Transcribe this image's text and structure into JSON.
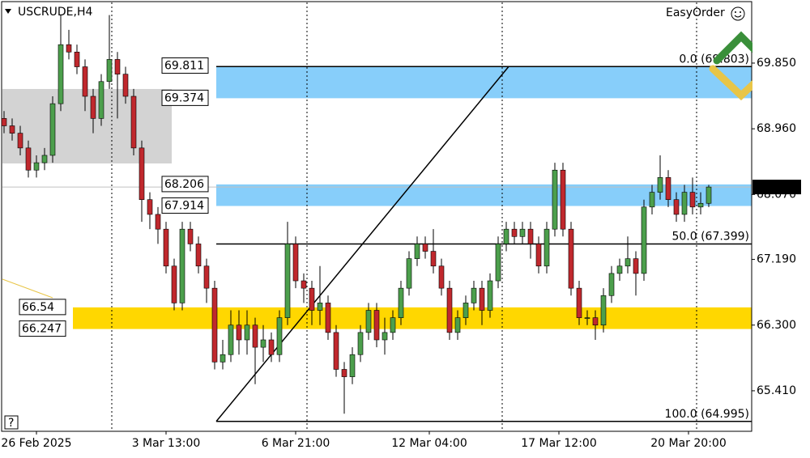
{
  "chart_data": {
    "type": "candlestick",
    "title": "USCRUDE,H4",
    "plugin": "EasyOrder",
    "ylim": [
      64.861,
      70.672
    ],
    "yticks": [
      {
        "value": 69.85,
        "label": "69.850"
      },
      {
        "value": 68.96,
        "label": "68.960"
      },
      {
        "value": 68.07,
        "label": "68.070"
      },
      {
        "value": 67.19,
        "label": "67.190"
      },
      {
        "value": 66.3,
        "label": "66.300"
      },
      {
        "value": 65.41,
        "label": "65.410"
      }
    ],
    "x_labels": [
      "26 Feb 2025",
      "3 Mar 13:00",
      "6 Mar 21:00",
      "12 Mar 04:00",
      "17 Mar 12:00",
      "20 Mar 20:00"
    ],
    "current_price": 68.171,
    "up_color": "#4c9f4c",
    "down_color": "#c0282d",
    "open": [
      69.1,
      69.0,
      68.9,
      68.7,
      68.4,
      68.5,
      68.6,
      69.3,
      70.1,
      70.0,
      69.8,
      69.4,
      69.1,
      69.6,
      69.9,
      69.7,
      69.4,
      68.7,
      68.0,
      67.8,
      67.6,
      67.1,
      66.6,
      67.6,
      67.4,
      67.1,
      66.8,
      65.8,
      65.9,
      66.3,
      66.1,
      66.3,
      66.0,
      66.1,
      65.9,
      66.4,
      67.4,
      66.9,
      66.8,
      66.5,
      66.6,
      66.2,
      65.7,
      65.6,
      65.9,
      66.2,
      66.5,
      66.1,
      66.2,
      66.4,
      66.8,
      67.2,
      67.4,
      67.3,
      67.1,
      66.8,
      66.2,
      66.4,
      66.6,
      66.8,
      66.5,
      66.9,
      67.4,
      67.6,
      67.5,
      67.6,
      67.4,
      67.1,
      67.6,
      68.4,
      67.6,
      66.8,
      66.4,
      66.4,
      66.3,
      66.7,
      67.0,
      67.1,
      67.2,
      67.0,
      67.9,
      68.1,
      68.3,
      68.0,
      67.8,
      68.1,
      67.9,
      67.95
    ],
    "high": [
      69.2,
      69.1,
      69.0,
      68.8,
      68.6,
      68.7,
      69.4,
      70.5,
      70.3,
      70.1,
      69.9,
      69.5,
      69.7,
      70.5,
      70.0,
      69.8,
      69.5,
      68.8,
      68.1,
      67.9,
      67.7,
      67.2,
      67.7,
      67.7,
      67.5,
      67.2,
      66.9,
      66.1,
      66.5,
      66.5,
      66.5,
      66.4,
      66.3,
      66.2,
      66.5,
      67.7,
      67.5,
      67.0,
      66.9,
      67.1,
      66.7,
      66.3,
      65.8,
      66.0,
      66.3,
      66.6,
      66.6,
      66.4,
      66.5,
      66.9,
      67.3,
      67.5,
      67.5,
      67.6,
      67.2,
      66.9,
      66.5,
      66.7,
      66.9,
      66.9,
      67.0,
      67.5,
      67.7,
      67.7,
      67.7,
      67.7,
      67.5,
      67.7,
      68.5,
      68.5,
      67.7,
      66.9,
      66.5,
      66.5,
      66.8,
      67.1,
      67.2,
      67.5,
      67.3,
      68.0,
      68.2,
      68.6,
      68.4,
      68.1,
      68.2,
      68.3,
      68.1,
      68.2
    ],
    "low": [
      68.9,
      68.8,
      68.6,
      68.3,
      68.3,
      68.4,
      68.5,
      69.2,
      69.9,
      69.7,
      69.2,
      68.9,
      69.0,
      69.5,
      69.1,
      69.3,
      68.6,
      67.7,
      67.6,
      67.4,
      67.0,
      66.5,
      66.5,
      67.3,
      67.0,
      66.6,
      65.7,
      65.7,
      65.8,
      65.9,
      65.9,
      65.5,
      65.8,
      65.8,
      65.8,
      66.3,
      66.8,
      66.6,
      66.3,
      66.3,
      66.1,
      65.6,
      65.1,
      65.5,
      65.8,
      66.1,
      66.0,
      65.9,
      66.1,
      66.3,
      66.7,
      67.1,
      67.2,
      67.0,
      66.7,
      66.1,
      66.1,
      66.3,
      66.5,
      66.3,
      66.4,
      66.8,
      67.3,
      67.4,
      67.4,
      67.2,
      67.0,
      67.0,
      67.5,
      67.5,
      66.7,
      66.3,
      66.3,
      66.1,
      66.2,
      66.6,
      66.9,
      67.0,
      66.7,
      66.9,
      67.8,
      68.0,
      67.9,
      67.7,
      67.7,
      67.8,
      67.8,
      67.9
    ],
    "close": [
      69.0,
      68.9,
      68.7,
      68.4,
      68.5,
      68.6,
      69.3,
      70.1,
      70.0,
      69.8,
      69.4,
      69.1,
      69.6,
      69.9,
      69.7,
      69.4,
      68.7,
      68.0,
      67.8,
      67.6,
      67.1,
      66.6,
      67.6,
      67.4,
      67.1,
      66.8,
      65.8,
      65.9,
      66.3,
      66.1,
      66.3,
      66.0,
      66.1,
      65.9,
      66.4,
      67.4,
      66.9,
      66.8,
      66.5,
      66.6,
      66.2,
      65.7,
      65.6,
      65.9,
      66.2,
      66.5,
      66.1,
      66.2,
      66.4,
      66.8,
      67.2,
      67.4,
      67.3,
      67.1,
      66.8,
      66.2,
      66.4,
      66.6,
      66.8,
      66.5,
      66.9,
      67.4,
      67.6,
      67.5,
      67.6,
      67.4,
      67.1,
      67.6,
      68.4,
      67.6,
      66.8,
      66.4,
      66.4,
      66.3,
      66.7,
      67.0,
      67.1,
      67.2,
      67.0,
      67.9,
      68.1,
      68.3,
      68.0,
      67.8,
      68.1,
      67.9,
      67.95,
      68.171
    ],
    "zones": [
      {
        "top": 69.811,
        "bottom": 69.374,
        "color": "#87cefa"
      },
      {
        "top": 68.206,
        "bottom": 67.914,
        "color": "#87cefa"
      },
      {
        "top": 66.54,
        "bottom": 66.247,
        "color": "#ffd700"
      }
    ],
    "range_box": {
      "top": 69.499,
      "bottom": 68.49,
      "color": "#d3d3d3"
    },
    "fibonacci": [
      {
        "label": "0.0 (69.803)",
        "price": 69.803
      },
      {
        "label": "50.0 (67.399)",
        "price": 67.399
      },
      {
        "label": "100.0 (64.995)",
        "price": 64.995
      }
    ]
  }
}
